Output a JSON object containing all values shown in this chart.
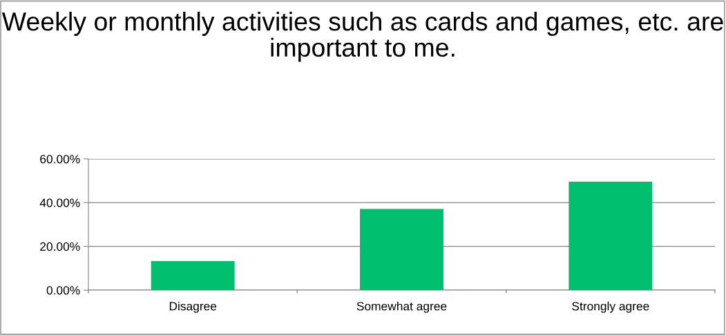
{
  "chart_data": {
    "type": "bar",
    "title": "Weekly or monthly activities such as cards and games, etc. are important to me.",
    "categories": [
      "Disagree",
      "Somewhat agree",
      "Strongly agree"
    ],
    "values": [
      13.3,
      37.1,
      49.6
    ],
    "color": "#00bf6f",
    "ylim": [
      0,
      60
    ],
    "yticks": [
      {
        "value": 0,
        "label": "0.00%"
      },
      {
        "value": 20,
        "label": "20.00%"
      },
      {
        "value": 40,
        "label": "40.00%"
      },
      {
        "value": 60,
        "label": "60.00%"
      }
    ],
    "grid": "y",
    "legend": false
  }
}
